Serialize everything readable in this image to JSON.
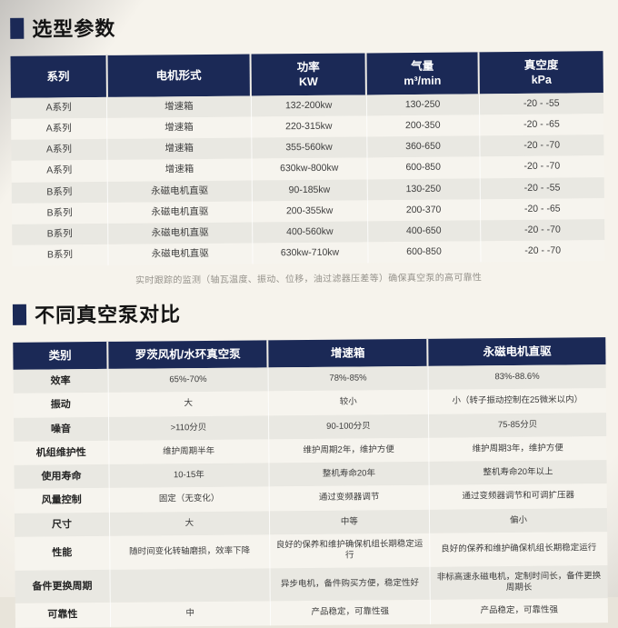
{
  "accent_color": "#1b2956",
  "section1": {
    "title": "选型参数",
    "table": {
      "headers": [
        "系列",
        "电机形式",
        "功率\nKW",
        "气量\nm³/min",
        "真空度\nkPa"
      ],
      "rows": [
        [
          "A系列",
          "增速箱",
          "132-200kw",
          "130-250",
          "-20 - -55"
        ],
        [
          "A系列",
          "增速箱",
          "220-315kw",
          "200-350",
          "-20 - -65"
        ],
        [
          "A系列",
          "增速箱",
          "355-560kw",
          "360-650",
          "-20 - -70"
        ],
        [
          "A系列",
          "增速箱",
          "630kw-800kw",
          "600-850",
          "-20 - -70"
        ],
        [
          "B系列",
          "永磁电机直驱",
          "90-185kw",
          "130-250",
          "-20 - -55"
        ],
        [
          "B系列",
          "永磁电机直驱",
          "200-355kw",
          "200-370",
          "-20 - -65"
        ],
        [
          "B系列",
          "永磁电机直驱",
          "400-560kw",
          "400-650",
          "-20 - -70"
        ],
        [
          "B系列",
          "永磁电机直驱",
          "630kw-710kw",
          "600-850",
          "-20 - -70"
        ]
      ]
    },
    "note": "实时跟踪的监测（轴瓦温度、振动、位移，油过滤器压差等）确保真空泵的高可靠性"
  },
  "section2": {
    "title": "不同真空泵对比",
    "table": {
      "headers": [
        "类别",
        "罗茨风机/水环真空泵",
        "增速箱",
        "永磁电机直驱"
      ],
      "rows": [
        [
          "效率",
          "65%-70%",
          "78%-85%",
          "83%-88.6%"
        ],
        [
          "振动",
          "大",
          "较小",
          "小（转子振动控制在25微米以内）"
        ],
        [
          "噪音",
          ">110分贝",
          "90-100分贝",
          "75-85分贝"
        ],
        [
          "机组维护性",
          "维护周期半年",
          "维护周期2年，维护方便",
          "维护周期3年，维护方便"
        ],
        [
          "使用寿命",
          "10-15年",
          "整机寿命20年",
          "整机寿命20年以上"
        ],
        [
          "风量控制",
          "固定（无变化）",
          "通过变频器调节",
          "通过变频器调节和可调扩压器"
        ],
        [
          "尺寸",
          "大",
          "中等",
          "偏小"
        ],
        [
          "性能",
          "随时间变化转轴磨损，效率下降",
          "良好的保养和维护确保机组长期稳定运行",
          "良好的保养和维护确保机组长期稳定运行"
        ],
        [
          "备件更换周期",
          "",
          "异步电机，备件购买方便，稳定性好",
          "非标高速永磁电机，定制时间长，备件更换周期长"
        ],
        [
          "可靠性",
          "中",
          "产品稳定，可靠性强",
          "产品稳定，可靠性强"
        ]
      ]
    }
  }
}
